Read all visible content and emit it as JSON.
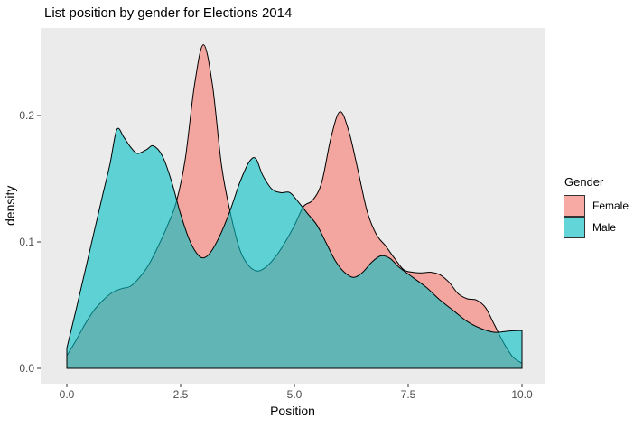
{
  "title": "List position by gender for Elections 2014",
  "chart_data": {
    "type": "area",
    "subtype": "density",
    "title": "List position by gender for Elections 2014",
    "xlabel": "Position",
    "ylabel": "density",
    "xlim": [
      0,
      10
    ],
    "ylim": [
      0,
      0.26
    ],
    "grid": false,
    "panel_background": "#EBEBEB",
    "outer_background": "#FFFFFF",
    "tick_text_color": "#4D4D4D",
    "tick_mark_color": "#333333",
    "outline_color": "#000000",
    "alpha": 0.6,
    "x_axis": {
      "ticks": [
        {
          "value": 0,
          "label": "0.0"
        },
        {
          "value": 2.5,
          "label": "2.5"
        },
        {
          "value": 5,
          "label": "5.0"
        },
        {
          "value": 7.5,
          "label": "7.5"
        },
        {
          "value": 10,
          "label": "10.0"
        }
      ]
    },
    "y_axis": {
      "ticks": [
        {
          "value": 0,
          "label": "0.0"
        },
        {
          "value": 0.1,
          "label": "0.1"
        },
        {
          "value": 0.2,
          "label": "0.2"
        }
      ]
    },
    "legend": {
      "title": "Gender",
      "position": "right",
      "entries": [
        {
          "label": "Female",
          "color": "#F8766D"
        },
        {
          "label": "Male",
          "color": "#00BFC4"
        }
      ]
    },
    "series": [
      {
        "name": "Female",
        "color": "#F8766D",
        "points": [
          [
            0,
            0.01
          ],
          [
            0.2,
            0.022
          ],
          [
            0.4,
            0.035
          ],
          [
            0.6,
            0.046
          ],
          [
            0.8,
            0.054
          ],
          [
            1.0,
            0.06
          ],
          [
            1.2,
            0.063
          ],
          [
            1.4,
            0.065
          ],
          [
            1.6,
            0.072
          ],
          [
            1.8,
            0.082
          ],
          [
            2.0,
            0.096
          ],
          [
            2.2,
            0.112
          ],
          [
            2.4,
            0.131
          ],
          [
            2.6,
            0.165
          ],
          [
            2.8,
            0.223
          ],
          [
            3.0,
            0.256
          ],
          [
            3.2,
            0.224
          ],
          [
            3.4,
            0.16
          ],
          [
            3.6,
            0.122
          ],
          [
            3.8,
            0.094
          ],
          [
            4.0,
            0.081
          ],
          [
            4.2,
            0.077
          ],
          [
            4.4,
            0.081
          ],
          [
            4.6,
            0.089
          ],
          [
            4.8,
            0.1
          ],
          [
            5.0,
            0.113
          ],
          [
            5.2,
            0.128
          ],
          [
            5.4,
            0.133
          ],
          [
            5.6,
            0.147
          ],
          [
            5.8,
            0.182
          ],
          [
            6.0,
            0.203
          ],
          [
            6.2,
            0.187
          ],
          [
            6.4,
            0.156
          ],
          [
            6.6,
            0.124
          ],
          [
            6.8,
            0.106
          ],
          [
            7.0,
            0.097
          ],
          [
            7.2,
            0.087
          ],
          [
            7.4,
            0.078
          ],
          [
            7.6,
            0.076
          ],
          [
            7.8,
            0.0755
          ],
          [
            8.0,
            0.076
          ],
          [
            8.2,
            0.074
          ],
          [
            8.4,
            0.068
          ],
          [
            8.6,
            0.059
          ],
          [
            8.8,
            0.055
          ],
          [
            9.0,
            0.054
          ],
          [
            9.2,
            0.048
          ],
          [
            9.4,
            0.034
          ],
          [
            9.6,
            0.02
          ],
          [
            9.8,
            0.009
          ],
          [
            10,
            0.004
          ]
        ]
      },
      {
        "name": "Male",
        "color": "#00BFC4",
        "points": [
          [
            0,
            0.016
          ],
          [
            0.2,
            0.046
          ],
          [
            0.4,
            0.077
          ],
          [
            0.6,
            0.108
          ],
          [
            0.8,
            0.139
          ],
          [
            0.95,
            0.162
          ],
          [
            1.1,
            0.189
          ],
          [
            1.25,
            0.183
          ],
          [
            1.4,
            0.175
          ],
          [
            1.55,
            0.17
          ],
          [
            1.75,
            0.173
          ],
          [
            1.9,
            0.176
          ],
          [
            2.1,
            0.168
          ],
          [
            2.3,
            0.148
          ],
          [
            2.5,
            0.122
          ],
          [
            2.7,
            0.101
          ],
          [
            2.9,
            0.089
          ],
          [
            3.05,
            0.088
          ],
          [
            3.2,
            0.094
          ],
          [
            3.4,
            0.108
          ],
          [
            3.6,
            0.126
          ],
          [
            3.8,
            0.147
          ],
          [
            4.0,
            0.163
          ],
          [
            4.15,
            0.166
          ],
          [
            4.3,
            0.153
          ],
          [
            4.5,
            0.142
          ],
          [
            4.7,
            0.139
          ],
          [
            4.9,
            0.139
          ],
          [
            5.1,
            0.131
          ],
          [
            5.3,
            0.122
          ],
          [
            5.5,
            0.113
          ],
          [
            5.7,
            0.099
          ],
          [
            5.9,
            0.085
          ],
          [
            6.1,
            0.076
          ],
          [
            6.3,
            0.072
          ],
          [
            6.5,
            0.076
          ],
          [
            6.7,
            0.084
          ],
          [
            6.9,
            0.089
          ],
          [
            7.1,
            0.087
          ],
          [
            7.3,
            0.08
          ],
          [
            7.6,
            0.072
          ],
          [
            7.9,
            0.064
          ],
          [
            8.2,
            0.054
          ],
          [
            8.5,
            0.0455
          ],
          [
            8.8,
            0.037
          ],
          [
            9.1,
            0.0315
          ],
          [
            9.4,
            0.0285
          ],
          [
            9.7,
            0.0295
          ],
          [
            10,
            0.03
          ]
        ]
      }
    ]
  }
}
